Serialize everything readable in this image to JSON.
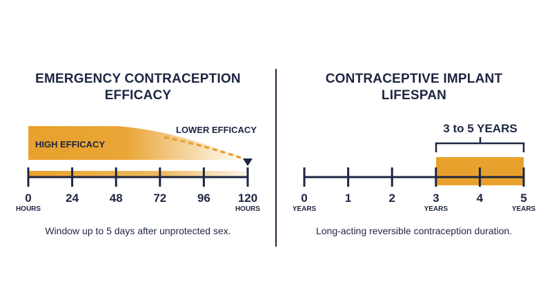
{
  "colors": {
    "navy": "#1c2541",
    "orange": "#e8a12c",
    "white": "#ffffff"
  },
  "left": {
    "title_line1": "EMERGENCY CONTRACEPTION",
    "title_line2": "EFFICACY",
    "high_label": "HIGH EFFICACY",
    "low_label": "LOWER EFFICACY",
    "caption": "Window up to 5 days after unprotected sex.",
    "ticks": [
      "0",
      "24",
      "48",
      "72",
      "96",
      "120"
    ],
    "start_unit": "HOURS",
    "end_unit": "HOURS"
  },
  "right": {
    "title_line1": "CONTRACEPTIVE IMPLANT",
    "title_line2": "LIFESPAN",
    "range_label": "3 to 5 YEARS",
    "caption": "Long-acting reversible contraception duration.",
    "ticks": [
      "0",
      "1",
      "2",
      "3",
      "4",
      "5"
    ],
    "units": [
      "YEARS",
      "",
      "",
      "YEARS",
      "",
      "YEARS"
    ],
    "highlight_from": 3,
    "highlight_to": 5
  }
}
